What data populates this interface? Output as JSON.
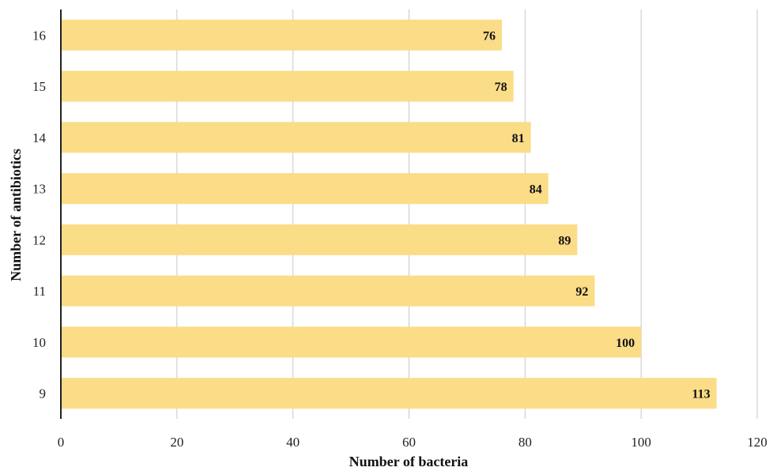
{
  "chart_data": {
    "type": "bar",
    "orientation": "horizontal",
    "categories": [
      "16",
      "15",
      "14",
      "13",
      "12",
      "11",
      "10",
      "9"
    ],
    "values": [
      76,
      78,
      81,
      84,
      89,
      92,
      100,
      113
    ],
    "title": "",
    "xlabel": "Number of bacteria",
    "ylabel": "Number of antibiotics",
    "xlim": [
      0,
      120
    ],
    "xticks": [
      0,
      20,
      40,
      60,
      80,
      100,
      120
    ],
    "grid": "vertical",
    "legend": "none",
    "data_labels": true
  },
  "colors": {
    "bar": "#fbdc87",
    "grid": "#c8c8c8",
    "axis": "#222222"
  }
}
